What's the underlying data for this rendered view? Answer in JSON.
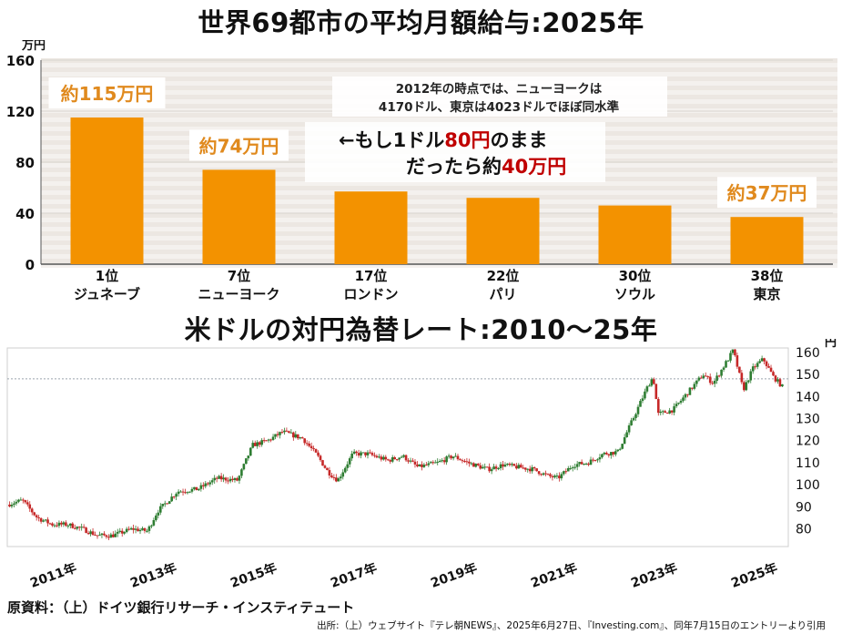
{
  "top_title": "世界69都市の平均月額給与:2025年",
  "bottom_title": "米ドルの対円為替レート:2010～25年",
  "source_main": "原資料：（上）ドイツ銀行リサーチ・インスティテュート",
  "source_note": "出所:（上）ウェブサイト『テレ朝NEWS』、2025年6月27日、『Investing.com』、同年7月15日のエントリーより引用",
  "colors": {
    "bar": "#f39200",
    "callout_text": "#e08a1e",
    "accent_red": "#c00000",
    "up": "#2e7d32",
    "down": "#c62828"
  },
  "chart_data": [
    {
      "type": "bar",
      "ylabel": "万円",
      "ylim": [
        0,
        160
      ],
      "yticks": [
        0,
        40,
        80,
        120,
        160
      ],
      "categories": [
        {
          "rank": "1位",
          "city": "ジュネーブ"
        },
        {
          "rank": "7位",
          "city": "ニューヨーク"
        },
        {
          "rank": "17位",
          "city": "ロンドン"
        },
        {
          "rank": "22位",
          "city": "パリ"
        },
        {
          "rank": "30位",
          "city": "ソウル"
        },
        {
          "rank": "38位",
          "city": "東京"
        }
      ],
      "values": [
        115,
        74,
        57,
        52,
        46,
        37
      ],
      "data_labels": [
        {
          "index": 0,
          "text": "約115万円"
        },
        {
          "index": 1,
          "text": "約74万円"
        },
        {
          "index": 5,
          "text": "約37万円"
        }
      ],
      "annotations": {
        "note_line1": "2012年の時点では、ニューヨークは",
        "note_line2": "4170ドル、東京は4023ドルでほぼ同水準",
        "big_line1_a": "←もし1ドル",
        "big_line1_b": "80円",
        "big_line1_c": "のまま",
        "big_line2_a": "だったら約",
        "big_line2_b": "40万円"
      }
    },
    {
      "type": "line",
      "ylabel": "円",
      "ylim": [
        72,
        162
      ],
      "yticks": [
        80,
        90,
        100,
        110,
        120,
        130,
        140,
        150,
        160
      ],
      "xlim": [
        2010.0,
        2025.6
      ],
      "xtick_labels": [
        "2011年",
        "2013年",
        "2015年",
        "2017年",
        "2019年",
        "2021年",
        "2023年",
        "2025年"
      ],
      "xtick_values": [
        2011,
        2013,
        2015,
        2017,
        2019,
        2021,
        2023,
        2025
      ],
      "reference_line": 148,
      "x": [
        2010.0,
        2010.3,
        2010.6,
        2010.9,
        2011.2,
        2011.5,
        2011.8,
        2012.1,
        2012.5,
        2012.8,
        2013.0,
        2013.4,
        2013.8,
        2014.2,
        2014.6,
        2014.9,
        2015.2,
        2015.5,
        2015.9,
        2016.2,
        2016.4,
        2016.6,
        2016.9,
        2017.2,
        2017.6,
        2017.9,
        2018.2,
        2018.6,
        2018.9,
        2019.2,
        2019.6,
        2019.9,
        2020.2,
        2020.5,
        2020.8,
        2021.0,
        2021.3,
        2021.6,
        2021.9,
        2022.2,
        2022.5,
        2022.8,
        2022.9,
        2023.0,
        2023.3,
        2023.6,
        2023.9,
        2024.1,
        2024.4,
        2024.5,
        2024.7,
        2024.9,
        2025.1,
        2025.3,
        2025.5
      ],
      "y": [
        91,
        93,
        85,
        82,
        82,
        80,
        77,
        77,
        80,
        79,
        88,
        97,
        98,
        103,
        102,
        118,
        120,
        124,
        121,
        113,
        106,
        102,
        114,
        114,
        111,
        113,
        108,
        110,
        113,
        110,
        107,
        109,
        108,
        107,
        104,
        103,
        109,
        110,
        114,
        115,
        130,
        145,
        149,
        132,
        134,
        142,
        150,
        146,
        157,
        161,
        143,
        153,
        157,
        149,
        144
      ]
    }
  ]
}
